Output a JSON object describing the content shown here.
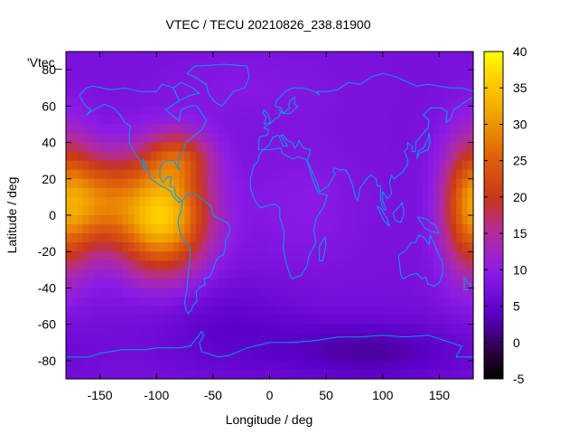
{
  "chart_data": {
    "type": "heatmap",
    "title": "VTEC / TECU 20210826_238.81900",
    "xlabel": "Longitude / deg",
    "ylabel": "Latitude / deg",
    "legend_title": "'Vtec_",
    "xlim": [
      -180,
      180
    ],
    "ylim": [
      -90,
      90
    ],
    "xticks": [
      -150,
      -100,
      -50,
      0,
      50,
      100,
      150
    ],
    "yticks": [
      -80,
      -60,
      -40,
      -20,
      0,
      20,
      40,
      60,
      80
    ],
    "colorbar": {
      "range": [
        -5,
        40
      ],
      "ticks": [
        -5,
        0,
        5,
        10,
        15,
        20,
        25,
        30,
        35,
        40
      ]
    },
    "grid": false,
    "colormap": "black-purple-red-orange-yellow",
    "coastline_color": "#00a0e8",
    "features": [
      {
        "lon": -95,
        "lat": 2,
        "vtec": 36
      },
      {
        "lon": -150,
        "lat": 8,
        "vtec": 27
      },
      {
        "lon": -85,
        "lat": 35,
        "vtec": 22
      },
      {
        "lon": 175,
        "lat": 8,
        "vtec": 28
      },
      {
        "lon": 90,
        "lat": -72,
        "vtec": 2
      },
      {
        "lon": 40,
        "lat": 5,
        "vtec": 8
      }
    ]
  }
}
